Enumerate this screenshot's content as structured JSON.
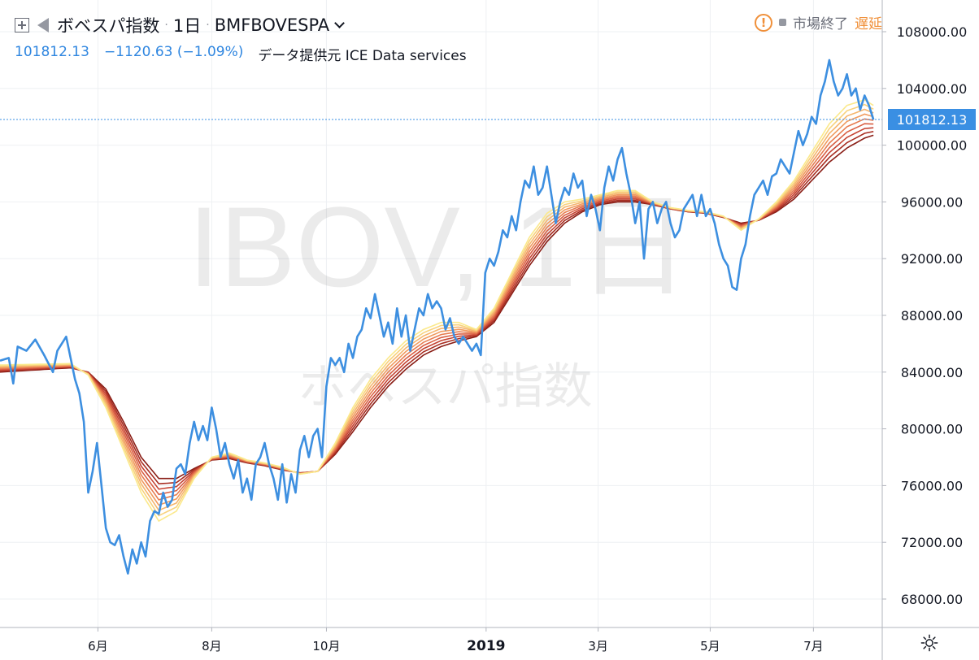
{
  "header": {
    "symbol_name": "ボベスパ指数",
    "interval": "1日",
    "ticker": "BMFBOVESPA",
    "last_value": "101812.13",
    "change": "−1120.63 (−1.09%)",
    "data_source": "データ提供元 ICE Data services",
    "market_status": "市場終了",
    "delay_label": "遅延",
    "icons": [
      "plus-box-icon",
      "flag-icon",
      "chevron-down-icon",
      "warning-icon",
      "gear-icon"
    ]
  },
  "watermark": {
    "main": "IBOV, 1日",
    "sub": "ボベスパ指数"
  },
  "colors": {
    "price_line": "#3d8fe0",
    "ribbon": [
      "#fbe98c",
      "#f8d27d",
      "#f5b56d",
      "#f09a5e",
      "#e77d51",
      "#d95f43",
      "#c54433",
      "#a82e22",
      "#8a1e16"
    ],
    "price_label_bg": "#3a8fe3"
  },
  "chart_data": {
    "type": "line",
    "price_label": "101812.13",
    "ylim": [
      66000,
      110000
    ],
    "y_ticks": [
      108000,
      104000,
      100000,
      96000,
      92000,
      88000,
      84000,
      80000,
      76000,
      72000,
      68000
    ],
    "y_tick_labels": [
      "108000.00",
      "104000.00",
      "100000.00",
      "96000.00",
      "92000.00",
      "88000.00",
      "84000.00",
      "80000.00",
      "76000.00",
      "72000.00",
      "68000.00"
    ],
    "x_ticks": [
      {
        "label": "6月",
        "t": 0.111
      },
      {
        "label": "8月",
        "t": 0.24
      },
      {
        "label": "10月",
        "t": 0.37
      },
      {
        "label": "2019",
        "t": 0.551
      },
      {
        "label": "3月",
        "t": 0.678
      },
      {
        "label": "5月",
        "t": 0.805
      },
      {
        "label": "7月",
        "t": 0.922
      }
    ],
    "x_range": [
      0,
      1
    ],
    "series": [
      {
        "points": [
          [
            0,
            84800
          ],
          [
            0.01,
            85000
          ],
          [
            0.015,
            83200
          ],
          [
            0.02,
            85800
          ],
          [
            0.03,
            85500
          ],
          [
            0.04,
            86300
          ],
          [
            0.05,
            85200
          ],
          [
            0.06,
            84000
          ],
          [
            0.065,
            85500
          ],
          [
            0.075,
            86500
          ],
          [
            0.08,
            85000
          ],
          [
            0.085,
            83500
          ],
          [
            0.09,
            82500
          ],
          [
            0.095,
            80500
          ],
          [
            0.1,
            75500
          ],
          [
            0.105,
            77000
          ],
          [
            0.11,
            79000
          ],
          [
            0.115,
            76000
          ],
          [
            0.12,
            73000
          ],
          [
            0.125,
            72000
          ],
          [
            0.13,
            71800
          ],
          [
            0.135,
            72500
          ],
          [
            0.14,
            71000
          ],
          [
            0.145,
            69800
          ],
          [
            0.15,
            71500
          ],
          [
            0.155,
            70500
          ],
          [
            0.16,
            72000
          ],
          [
            0.165,
            71000
          ],
          [
            0.17,
            73500
          ],
          [
            0.175,
            74200
          ],
          [
            0.18,
            74000
          ],
          [
            0.185,
            75500
          ],
          [
            0.19,
            74500
          ],
          [
            0.195,
            75000
          ],
          [
            0.2,
            77200
          ],
          [
            0.205,
            77500
          ],
          [
            0.21,
            76800
          ],
          [
            0.215,
            79000
          ],
          [
            0.22,
            80500
          ],
          [
            0.225,
            79200
          ],
          [
            0.23,
            80200
          ],
          [
            0.235,
            79200
          ],
          [
            0.24,
            81500
          ],
          [
            0.245,
            80000
          ],
          [
            0.25,
            78000
          ],
          [
            0.255,
            79000
          ],
          [
            0.26,
            77500
          ],
          [
            0.265,
            76500
          ],
          [
            0.27,
            77800
          ],
          [
            0.275,
            75500
          ],
          [
            0.28,
            76500
          ],
          [
            0.285,
            75000
          ],
          [
            0.29,
            77500
          ],
          [
            0.295,
            78000
          ],
          [
            0.3,
            79000
          ],
          [
            0.305,
            77500
          ],
          [
            0.31,
            76500
          ],
          [
            0.315,
            75000
          ],
          [
            0.32,
            77500
          ],
          [
            0.325,
            74800
          ],
          [
            0.33,
            76800
          ],
          [
            0.335,
            75500
          ],
          [
            0.34,
            78500
          ],
          [
            0.345,
            79500
          ],
          [
            0.35,
            78000
          ],
          [
            0.355,
            79500
          ],
          [
            0.36,
            80000
          ],
          [
            0.365,
            78000
          ],
          [
            0.37,
            83000
          ],
          [
            0.375,
            85000
          ],
          [
            0.38,
            84500
          ],
          [
            0.385,
            85000
          ],
          [
            0.39,
            84000
          ],
          [
            0.395,
            86000
          ],
          [
            0.4,
            85000
          ],
          [
            0.405,
            86500
          ],
          [
            0.41,
            87000
          ],
          [
            0.415,
            88500
          ],
          [
            0.42,
            87800
          ],
          [
            0.425,
            89500
          ],
          [
            0.43,
            88000
          ],
          [
            0.435,
            86500
          ],
          [
            0.44,
            87500
          ],
          [
            0.445,
            86000
          ],
          [
            0.45,
            88500
          ],
          [
            0.455,
            86500
          ],
          [
            0.46,
            88000
          ],
          [
            0.465,
            85500
          ],
          [
            0.47,
            87000
          ],
          [
            0.475,
            88500
          ],
          [
            0.48,
            88000
          ],
          [
            0.485,
            89500
          ],
          [
            0.49,
            88500
          ],
          [
            0.495,
            89000
          ],
          [
            0.5,
            88500
          ],
          [
            0.505,
            87000
          ],
          [
            0.51,
            87800
          ],
          [
            0.515,
            86500
          ],
          [
            0.52,
            86000
          ],
          [
            0.525,
            86500
          ],
          [
            0.53,
            86000
          ],
          [
            0.535,
            85500
          ],
          [
            0.54,
            86000
          ],
          [
            0.545,
            85200
          ],
          [
            0.55,
            91000
          ],
          [
            0.555,
            92000
          ],
          [
            0.56,
            91500
          ],
          [
            0.565,
            92500
          ],
          [
            0.57,
            94000
          ],
          [
            0.575,
            93500
          ],
          [
            0.58,
            95000
          ],
          [
            0.585,
            94000
          ],
          [
            0.59,
            96000
          ],
          [
            0.595,
            97500
          ],
          [
            0.6,
            97000
          ],
          [
            0.605,
            98500
          ],
          [
            0.61,
            96500
          ],
          [
            0.615,
            97000
          ],
          [
            0.62,
            98500
          ],
          [
            0.625,
            96500
          ],
          [
            0.63,
            94500
          ],
          [
            0.635,
            96000
          ],
          [
            0.64,
            97000
          ],
          [
            0.645,
            96500
          ],
          [
            0.65,
            98000
          ],
          [
            0.655,
            97000
          ],
          [
            0.66,
            97500
          ],
          [
            0.665,
            95000
          ],
          [
            0.67,
            96500
          ],
          [
            0.675,
            95500
          ],
          [
            0.68,
            94000
          ],
          [
            0.685,
            97000
          ],
          [
            0.69,
            98500
          ],
          [
            0.695,
            97500
          ],
          [
            0.7,
            99000
          ],
          [
            0.705,
            99800
          ],
          [
            0.71,
            98000
          ],
          [
            0.715,
            96500
          ],
          [
            0.72,
            94500
          ],
          [
            0.725,
            96000
          ],
          [
            0.73,
            92000
          ],
          [
            0.735,
            95500
          ],
          [
            0.74,
            96000
          ],
          [
            0.745,
            94500
          ],
          [
            0.75,
            95500
          ],
          [
            0.755,
            96000
          ],
          [
            0.76,
            94500
          ],
          [
            0.765,
            93500
          ],
          [
            0.77,
            94000
          ],
          [
            0.775,
            95500
          ],
          [
            0.78,
            96000
          ],
          [
            0.785,
            96500
          ],
          [
            0.79,
            95000
          ],
          [
            0.795,
            96500
          ],
          [
            0.8,
            95000
          ],
          [
            0.805,
            95500
          ],
          [
            0.81,
            94500
          ],
          [
            0.815,
            93000
          ],
          [
            0.82,
            92000
          ],
          [
            0.825,
            91500
          ],
          [
            0.83,
            90000
          ],
          [
            0.835,
            89800
          ],
          [
            0.84,
            92000
          ],
          [
            0.845,
            93000
          ],
          [
            0.85,
            95000
          ],
          [
            0.855,
            96500
          ],
          [
            0.86,
            97000
          ],
          [
            0.865,
            97500
          ],
          [
            0.87,
            96500
          ],
          [
            0.875,
            97800
          ],
          [
            0.88,
            98000
          ],
          [
            0.885,
            99000
          ],
          [
            0.89,
            98500
          ],
          [
            0.895,
            98000
          ],
          [
            0.9,
            99500
          ],
          [
            0.905,
            101000
          ],
          [
            0.91,
            100000
          ],
          [
            0.915,
            100800
          ],
          [
            0.92,
            102000
          ],
          [
            0.925,
            101500
          ],
          [
            0.93,
            103500
          ],
          [
            0.935,
            104500
          ],
          [
            0.94,
            106000
          ],
          [
            0.945,
            104500
          ],
          [
            0.95,
            103500
          ],
          [
            0.955,
            104000
          ],
          [
            0.96,
            105000
          ],
          [
            0.965,
            103500
          ],
          [
            0.97,
            104000
          ],
          [
            0.975,
            102500
          ],
          [
            0.98,
            103500
          ],
          [
            0.985,
            102800
          ],
          [
            0.99,
            101800
          ]
        ]
      }
    ],
    "ma_ribbon": {
      "count": 9,
      "base": [
        [
          0,
          84500
        ],
        [
          0.08,
          84600
        ],
        [
          0.1,
          83800
        ],
        [
          0.12,
          81500
        ],
        [
          0.14,
          78500
        ],
        [
          0.16,
          75500
        ],
        [
          0.18,
          73500
        ],
        [
          0.2,
          74200
        ],
        [
          0.22,
          76500
        ],
        [
          0.24,
          78000
        ],
        [
          0.26,
          78300
        ],
        [
          0.28,
          77800
        ],
        [
          0.3,
          77600
        ],
        [
          0.32,
          77300
        ],
        [
          0.34,
          76800
        ],
        [
          0.36,
          77000
        ],
        [
          0.38,
          79000
        ],
        [
          0.4,
          81500
        ],
        [
          0.42,
          83500
        ],
        [
          0.44,
          85000
        ],
        [
          0.46,
          86200
        ],
        [
          0.48,
          87000
        ],
        [
          0.5,
          87500
        ],
        [
          0.52,
          87500
        ],
        [
          0.54,
          87000
        ],
        [
          0.56,
          88500
        ],
        [
          0.58,
          91000
        ],
        [
          0.6,
          93500
        ],
        [
          0.62,
          95200
        ],
        [
          0.64,
          96000
        ],
        [
          0.66,
          96200
        ],
        [
          0.68,
          96500
        ],
        [
          0.7,
          96800
        ],
        [
          0.72,
          96800
        ],
        [
          0.74,
          96000
        ],
        [
          0.76,
          95600
        ],
        [
          0.78,
          95400
        ],
        [
          0.8,
          95300
        ],
        [
          0.82,
          95000
        ],
        [
          0.84,
          94000
        ],
        [
          0.86,
          94800
        ],
        [
          0.88,
          96000
        ],
        [
          0.9,
          97500
        ],
        [
          0.92,
          99500
        ],
        [
          0.94,
          101500
        ],
        [
          0.96,
          102800
        ],
        [
          0.98,
          103200
        ],
        [
          0.99,
          102800
        ]
      ],
      "slow": [
        [
          0,
          84000
        ],
        [
          0.08,
          84300
        ],
        [
          0.1,
          84000
        ],
        [
          0.12,
          82800
        ],
        [
          0.14,
          80500
        ],
        [
          0.16,
          78000
        ],
        [
          0.18,
          76500
        ],
        [
          0.2,
          76500
        ],
        [
          0.22,
          77200
        ],
        [
          0.24,
          77800
        ],
        [
          0.26,
          77900
        ],
        [
          0.28,
          77600
        ],
        [
          0.3,
          77400
        ],
        [
          0.32,
          77100
        ],
        [
          0.34,
          76900
        ],
        [
          0.36,
          77000
        ],
        [
          0.38,
          78200
        ],
        [
          0.4,
          79800
        ],
        [
          0.42,
          81500
        ],
        [
          0.44,
          83000
        ],
        [
          0.46,
          84200
        ],
        [
          0.48,
          85200
        ],
        [
          0.5,
          85800
        ],
        [
          0.52,
          86200
        ],
        [
          0.54,
          86500
        ],
        [
          0.56,
          87500
        ],
        [
          0.58,
          89500
        ],
        [
          0.6,
          91500
        ],
        [
          0.62,
          93200
        ],
        [
          0.64,
          94500
        ],
        [
          0.66,
          95300
        ],
        [
          0.68,
          95800
        ],
        [
          0.7,
          96000
        ],
        [
          0.72,
          96000
        ],
        [
          0.74,
          95800
        ],
        [
          0.76,
          95500
        ],
        [
          0.78,
          95300
        ],
        [
          0.8,
          95200
        ],
        [
          0.82,
          94900
        ],
        [
          0.84,
          94500
        ],
        [
          0.86,
          94700
        ],
        [
          0.88,
          95300
        ],
        [
          0.9,
          96200
        ],
        [
          0.92,
          97500
        ],
        [
          0.94,
          98800
        ],
        [
          0.96,
          99800
        ],
        [
          0.98,
          100500
        ],
        [
          0.99,
          100700
        ]
      ]
    }
  }
}
